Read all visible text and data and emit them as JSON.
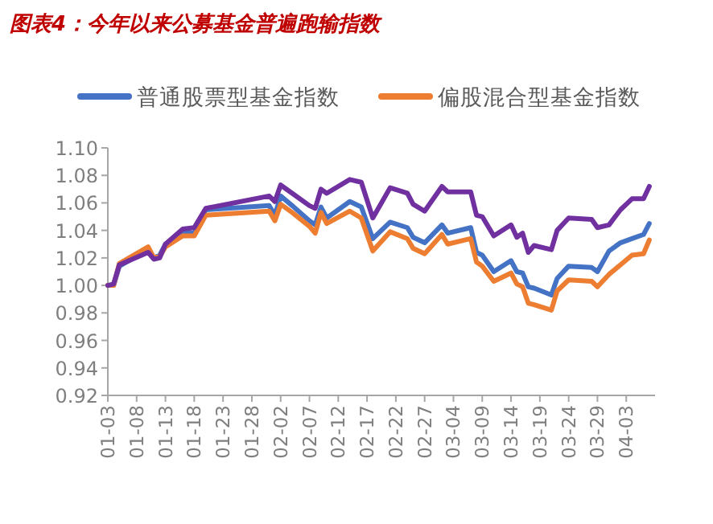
{
  "chart_data": {
    "type": "line",
    "title": "图表4：今年以来公募基金普遍跑输指数",
    "x": [
      "--01-03",
      "--01-04",
      "--01-05",
      "--01-10",
      "--01-11",
      "--01-12",
      "--01-13",
      "--01-16",
      "--01-18",
      "--01-20",
      "--01-31",
      "--02-01",
      "--02-02",
      "--02-04",
      "--02-07",
      "--02-08",
      "--02-09",
      "--02-10",
      "--02-14",
      "--02-16",
      "--02-18",
      "--02-21",
      "--02-24",
      "--02-25",
      "--02-27",
      "--03-02",
      "--03-03",
      "--03-07",
      "--03-08",
      "--03-09",
      "--03-11",
      "--03-14",
      "--03-15",
      "--03-16",
      "--03-17",
      "--03-18",
      "--03-21",
      "--03-22",
      "--03-24",
      "--03-28",
      "--03-29",
      "--03-31",
      "--04-02",
      "--04-04",
      "--04-06",
      "--04-07"
    ],
    "series": [
      {
        "name": "普通股票型基金指数",
        "color": "#4472c4",
        "values": [
          1.0,
          1.0,
          1.014,
          1.026,
          1.02,
          1.022,
          1.03,
          1.038,
          1.038,
          1.055,
          1.058,
          1.051,
          1.065,
          1.058,
          1.047,
          1.044,
          1.057,
          1.049,
          1.061,
          1.057,
          1.034,
          1.046,
          1.042,
          1.035,
          1.031,
          1.044,
          1.038,
          1.042,
          1.024,
          1.022,
          1.01,
          1.018,
          1.01,
          1.009,
          0.999,
          0.998,
          0.993,
          1.005,
          1.014,
          1.013,
          1.01,
          1.025,
          1.031,
          1.034,
          1.037,
          1.045
        ]
      },
      {
        "name": "偏股混合型基金指数",
        "color": "#ed7d31",
        "values": [
          1.0,
          1.0,
          1.016,
          1.028,
          1.02,
          1.021,
          1.028,
          1.036,
          1.036,
          1.051,
          1.054,
          1.047,
          1.059,
          1.053,
          1.043,
          1.038,
          1.053,
          1.045,
          1.054,
          1.049,
          1.025,
          1.039,
          1.034,
          1.027,
          1.023,
          1.037,
          1.03,
          1.034,
          1.017,
          1.014,
          1.003,
          1.009,
          1.001,
          0.999,
          0.987,
          0.986,
          0.982,
          0.996,
          1.004,
          1.003,
          0.999,
          1.008,
          1.015,
          1.022,
          1.023,
          1.033
        ]
      },
      {
        "color": "#7030a0",
        "values": [
          1.0,
          1.001,
          1.015,
          1.024,
          1.019,
          1.02,
          1.03,
          1.041,
          1.042,
          1.056,
          1.065,
          1.061,
          1.073,
          1.067,
          1.058,
          1.056,
          1.07,
          1.067,
          1.077,
          1.075,
          1.049,
          1.071,
          1.067,
          1.059,
          1.054,
          1.072,
          1.068,
          1.068,
          1.051,
          1.05,
          1.036,
          1.044,
          1.035,
          1.038,
          1.024,
          1.029,
          1.026,
          1.04,
          1.049,
          1.048,
          1.042,
          1.044,
          1.055,
          1.063,
          1.063,
          1.072
        ]
      }
    ],
    "xlim": [
      "--01-03",
      "--04-08"
    ],
    "xticks": [
      {
        "value": "--01-03",
        "label": "01-03"
      },
      {
        "value": "--01-08",
        "label": "01-08"
      },
      {
        "value": "--01-13",
        "label": "01-13"
      },
      {
        "value": "--01-18",
        "label": "01-18"
      },
      {
        "value": "--01-23",
        "label": "01-23"
      },
      {
        "value": "--01-28",
        "label": "01-28"
      },
      {
        "value": "--02-02",
        "label": "02-02"
      },
      {
        "value": "--02-07",
        "label": "02-07"
      },
      {
        "value": "--02-12",
        "label": "02-12"
      },
      {
        "value": "--02-17",
        "label": "02-17"
      },
      {
        "value": "--02-22",
        "label": "02-22"
      },
      {
        "value": "--02-27",
        "label": "02-27"
      },
      {
        "value": "--03-04",
        "label": "03-04"
      },
      {
        "value": "--03-09",
        "label": "03-09"
      },
      {
        "value": "--03-14",
        "label": "03-14"
      },
      {
        "value": "--03-19",
        "label": "03-19"
      },
      {
        "value": "--03-24",
        "label": "03-24"
      },
      {
        "value": "--03-29",
        "label": "03-29"
      },
      {
        "value": "--04-03",
        "label": "04-03"
      }
    ],
    "ylim": [
      0.92,
      1.1
    ],
    "yticks": [
      {
        "value": 0.92,
        "label": "0.92"
      },
      {
        "value": 0.94,
        "label": "0.94"
      },
      {
        "value": 0.96,
        "label": "0.96"
      },
      {
        "value": 0.98,
        "label": "0.98"
      },
      {
        "value": 1.0,
        "label": "1.00"
      },
      {
        "value": 1.02,
        "label": "1.02"
      },
      {
        "value": 1.04,
        "label": "1.04"
      },
      {
        "value": 1.06,
        "label": "1.06"
      },
      {
        "value": 1.08,
        "label": "1.08"
      },
      {
        "value": 1.1,
        "label": "1.10"
      }
    ],
    "legend": "top"
  }
}
